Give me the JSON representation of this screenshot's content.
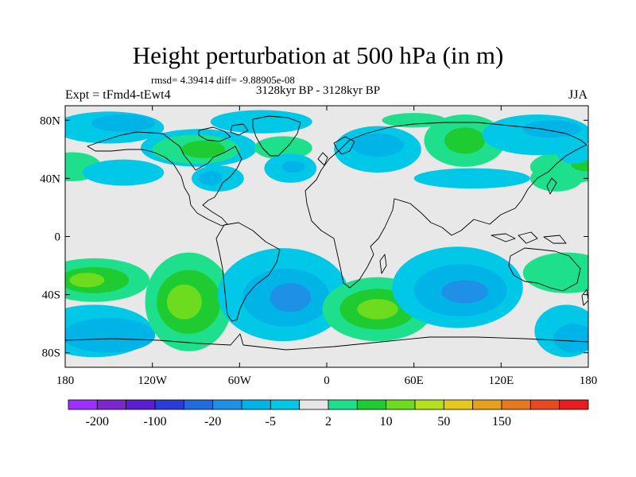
{
  "title": "Height perturbation at 500 hPa (in m)",
  "stats_text": "rmsd= 4.39414 diff= -9.88905e-08",
  "subtitle": "3128kyr BP - 3128kyr BP",
  "expt_label": "Expt = tFmd4-tEwt4",
  "season": "JJA",
  "map": {
    "projection": "cylindrical equidistant",
    "lon_range": [
      -180,
      180
    ],
    "lat_range": [
      -90,
      90
    ],
    "ocean_land_background": "#e8e8e8",
    "coastline_color": "#000000"
  },
  "axes": {
    "x_ticks": [
      {
        "lon": -180,
        "label": "180"
      },
      {
        "lon": -120,
        "label": "120W"
      },
      {
        "lon": -60,
        "label": "60W"
      },
      {
        "lon": 0,
        "label": "0"
      },
      {
        "lon": 60,
        "label": "60E"
      },
      {
        "lon": 120,
        "label": "120E"
      },
      {
        "lon": 180,
        "label": "180"
      }
    ],
    "y_ticks": [
      {
        "lat": 80,
        "label": "80N"
      },
      {
        "lat": 40,
        "label": "40N"
      },
      {
        "lat": 0,
        "label": "0"
      },
      {
        "lat": -40,
        "label": "40S"
      },
      {
        "lat": -80,
        "label": "80S"
      }
    ]
  },
  "colorbar": {
    "colors": [
      "#9b30ff",
      "#7d26cd",
      "#5a1fd0",
      "#2a3dd8",
      "#1e6cde",
      "#1e90e6",
      "#00b4e8",
      "#00c8e6",
      "#e6e6e6",
      "#1ee08c",
      "#1ecc32",
      "#6edc1e",
      "#b4e01e",
      "#e6c81e",
      "#e6a01e",
      "#e6781e",
      "#e64a1e",
      "#e61e1e"
    ],
    "labels": [
      {
        "after_box": 1,
        "text": "-200"
      },
      {
        "after_box": 3,
        "text": "-100"
      },
      {
        "after_box": 5,
        "text": "-20"
      },
      {
        "after_box": 7,
        "text": "-5"
      },
      {
        "after_box": 9,
        "text": "2"
      },
      {
        "after_box": 11,
        "text": "10"
      },
      {
        "after_box": 13,
        "text": "50"
      },
      {
        "after_box": 15,
        "text": "150"
      }
    ]
  },
  "contour_blobs": [
    {
      "lon": 168,
      "lat": 48,
      "rx": 28,
      "ry": 11,
      "level": "pos1"
    },
    {
      "lon": -175,
      "lat": 48,
      "rx": 20,
      "ry": 10,
      "level": "pos1"
    },
    {
      "lon": 178,
      "lat": 50,
      "rx": 10,
      "ry": 5,
      "level": "pos2"
    },
    {
      "lon": -150,
      "lat": 75,
      "rx": 38,
      "ry": 11,
      "level": "neg1"
    },
    {
      "lon": -140,
      "lat": 78,
      "rx": 22,
      "ry": 6,
      "level": "neg2"
    },
    {
      "lon": -140,
      "lat": 44,
      "rx": 28,
      "ry": 9,
      "level": "neg1"
    },
    {
      "lon": -88,
      "lat": 61,
      "rx": 40,
      "ry": 13,
      "level": "neg1"
    },
    {
      "lon": -90,
      "lat": 60,
      "rx": 30,
      "ry": 10,
      "level": "pos1"
    },
    {
      "lon": -85,
      "lat": 60,
      "rx": 15,
      "ry": 6,
      "level": "pos2"
    },
    {
      "lon": -75,
      "lat": 40,
      "rx": 18,
      "ry": 9,
      "level": "neg1"
    },
    {
      "lon": -80,
      "lat": 40,
      "rx": 8,
      "ry": 5,
      "level": "neg2"
    },
    {
      "lon": -45,
      "lat": 79,
      "rx": 35,
      "ry": 8,
      "level": "neg1"
    },
    {
      "lon": -30,
      "lat": 61,
      "rx": 20,
      "ry": 8,
      "level": "pos1"
    },
    {
      "lon": -25,
      "lat": 47,
      "rx": 18,
      "ry": 10,
      "level": "neg1"
    },
    {
      "lon": -23,
      "lat": 48,
      "rx": 8,
      "ry": 4,
      "level": "neg2"
    },
    {
      "lon": 35,
      "lat": 60,
      "rx": 30,
      "ry": 16,
      "level": "neg1"
    },
    {
      "lon": 35,
      "lat": 63,
      "rx": 18,
      "ry": 8,
      "level": "neg2"
    },
    {
      "lon": 60,
      "lat": 80,
      "rx": 22,
      "ry": 5,
      "level": "pos1"
    },
    {
      "lon": 95,
      "lat": 66,
      "rx": 28,
      "ry": 18,
      "level": "pos1"
    },
    {
      "lon": 95,
      "lat": 66,
      "rx": 14,
      "ry": 9,
      "level": "pos2"
    },
    {
      "lon": 100,
      "lat": 40,
      "rx": 40,
      "ry": 7,
      "level": "neg1"
    },
    {
      "lon": 145,
      "lat": 70,
      "rx": 38,
      "ry": 14,
      "level": "neg1"
    },
    {
      "lon": 155,
      "lat": 74,
      "rx": 20,
      "ry": 6,
      "level": "neg2"
    },
    {
      "lon": 170,
      "lat": 58,
      "rx": 12,
      "ry": 8,
      "level": "neg1"
    },
    {
      "lon": 158,
      "lat": 40,
      "rx": 18,
      "ry": 9,
      "level": "pos1"
    },
    {
      "lon": -160,
      "lat": -30,
      "rx": 38,
      "ry": 15,
      "level": "pos1"
    },
    {
      "lon": -160,
      "lat": -30,
      "rx": 24,
      "ry": 9,
      "level": "pos2"
    },
    {
      "lon": -165,
      "lat": -30,
      "rx": 12,
      "ry": 5,
      "level": "pos3"
    },
    {
      "lon": -160,
      "lat": -65,
      "rx": 40,
      "ry": 18,
      "level": "neg1"
    },
    {
      "lon": -150,
      "lat": -68,
      "rx": 32,
      "ry": 12,
      "level": "neg2"
    },
    {
      "lon": -95,
      "lat": -45,
      "rx": 30,
      "ry": 34,
      "level": "pos1"
    },
    {
      "lon": -95,
      "lat": -45,
      "rx": 22,
      "ry": 22,
      "level": "pos2"
    },
    {
      "lon": -98,
      "lat": -45,
      "rx": 12,
      "ry": 12,
      "level": "pos3"
    },
    {
      "lon": -30,
      "lat": -40,
      "rx": 45,
      "ry": 32,
      "level": "neg1"
    },
    {
      "lon": -28,
      "lat": -42,
      "rx": 30,
      "ry": 20,
      "level": "neg2"
    },
    {
      "lon": -25,
      "lat": -42,
      "rx": 14,
      "ry": 10,
      "level": "neg3"
    },
    {
      "lon": 35,
      "lat": -50,
      "rx": 38,
      "ry": 22,
      "level": "pos1"
    },
    {
      "lon": 35,
      "lat": -50,
      "rx": 26,
      "ry": 14,
      "level": "pos2"
    },
    {
      "lon": 35,
      "lat": -50,
      "rx": 14,
      "ry": 7,
      "level": "pos3"
    },
    {
      "lon": 90,
      "lat": -35,
      "rx": 45,
      "ry": 28,
      "level": "neg1"
    },
    {
      "lon": 92,
      "lat": -37,
      "rx": 32,
      "ry": 18,
      "level": "neg2"
    },
    {
      "lon": 95,
      "lat": -38,
      "rx": 16,
      "ry": 8,
      "level": "neg3"
    },
    {
      "lon": 165,
      "lat": -25,
      "rx": 30,
      "ry": 14,
      "level": "pos1"
    },
    {
      "lon": 165,
      "lat": -65,
      "rx": 22,
      "ry": 18,
      "level": "neg1"
    },
    {
      "lon": 170,
      "lat": -70,
      "rx": 14,
      "ry": 10,
      "level": "neg2"
    }
  ]
}
